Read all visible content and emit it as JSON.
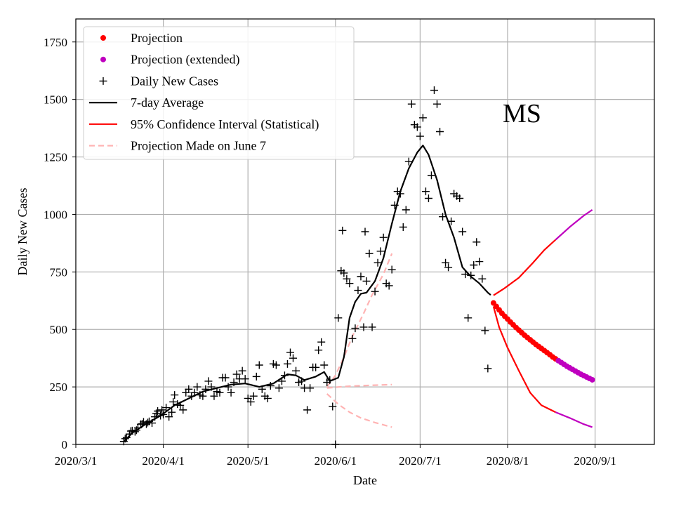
{
  "chart_data": {
    "type": "line",
    "title": "",
    "annotation": "MS",
    "xlabel": "Date",
    "ylabel": "Daily New Cases",
    "ylim": [
      0,
      1850
    ],
    "xlim_days": [
      0,
      205
    ],
    "x_ticks": [
      {
        "label": "2020/3/1",
        "day": 0
      },
      {
        "label": "2020/4/1",
        "day": 31
      },
      {
        "label": "2020/5/1",
        "day": 61
      },
      {
        "label": "2020/6/1",
        "day": 92
      },
      {
        "label": "2020/7/1",
        "day": 122
      },
      {
        "label": "2020/8/1",
        "day": 153
      },
      {
        "label": "2020/9/1",
        "day": 184
      }
    ],
    "y_ticks": [
      0,
      250,
      500,
      750,
      1000,
      1250,
      1500,
      1750
    ],
    "grid": true,
    "legend_position": "top-left",
    "legend": [
      {
        "label": "Projection",
        "style": "dot",
        "color": "#ff0000"
      },
      {
        "label": "Projection (extended)",
        "style": "dot",
        "color": "#bf00bf"
      },
      {
        "label": "Daily New Cases",
        "style": "plus",
        "color": "#000000"
      },
      {
        "label": "7-day Average",
        "style": "line",
        "color": "#000000"
      },
      {
        "label": "95% Confidence Interval (Statistical)",
        "style": "line",
        "color": "#ff0000"
      },
      {
        "label": "Projection Made on June 7",
        "style": "dashed",
        "color": "#ffb3b3"
      }
    ],
    "series": [
      {
        "name": "Daily New Cases",
        "style": "plus",
        "color": "#000000",
        "points": [
          [
            17,
            13
          ],
          [
            17.5,
            25
          ],
          [
            18,
            30
          ],
          [
            19,
            45
          ],
          [
            19.5,
            58
          ],
          [
            20,
            60
          ],
          [
            21,
            55
          ],
          [
            21.5,
            62
          ],
          [
            22,
            72
          ],
          [
            23,
            88
          ],
          [
            23.5,
            90
          ],
          [
            24,
            98
          ],
          [
            25,
            88
          ],
          [
            25.5,
            95
          ],
          [
            26,
            100
          ],
          [
            27,
            93
          ],
          [
            28,
            120
          ],
          [
            28.5,
            135
          ],
          [
            29,
            145
          ],
          [
            30,
            125
          ],
          [
            30.5,
            150
          ],
          [
            31,
            130
          ],
          [
            32,
            160
          ],
          [
            33,
            120
          ],
          [
            34,
            140
          ],
          [
            34.5,
            185
          ],
          [
            35,
            215
          ],
          [
            36,
            175
          ],
          [
            37,
            170
          ],
          [
            38,
            150
          ],
          [
            39,
            225
          ],
          [
            40,
            240
          ],
          [
            41,
            210
          ],
          [
            42,
            225
          ],
          [
            43,
            250
          ],
          [
            44,
            215
          ],
          [
            45,
            210
          ],
          [
            46,
            240
          ],
          [
            47,
            275
          ],
          [
            48,
            250
          ],
          [
            49,
            210
          ],
          [
            50,
            230
          ],
          [
            51,
            225
          ],
          [
            52,
            290
          ],
          [
            53,
            290
          ],
          [
            54,
            250
          ],
          [
            55,
            225
          ],
          [
            56,
            270
          ],
          [
            57,
            305
          ],
          [
            58,
            285
          ],
          [
            59,
            320
          ],
          [
            60,
            285
          ],
          [
            61,
            200
          ],
          [
            62,
            185
          ],
          [
            63,
            210
          ],
          [
            64,
            295
          ],
          [
            65,
            345
          ],
          [
            66,
            240
          ],
          [
            67,
            210
          ],
          [
            68,
            200
          ],
          [
            69,
            255
          ],
          [
            70,
            350
          ],
          [
            71,
            345
          ],
          [
            72,
            245
          ],
          [
            73,
            275
          ],
          [
            74,
            300
          ],
          [
            75,
            350
          ],
          [
            76,
            400
          ],
          [
            77,
            375
          ],
          [
            78,
            320
          ],
          [
            79,
            270
          ],
          [
            80,
            275
          ],
          [
            81,
            245
          ],
          [
            82,
            150
          ],
          [
            83,
            245
          ],
          [
            84,
            335
          ],
          [
            85,
            335
          ],
          [
            86,
            410
          ],
          [
            87,
            445
          ],
          [
            88,
            345
          ],
          [
            89,
            270
          ],
          [
            90,
            280
          ],
          [
            91,
            165
          ],
          [
            92,
            0
          ],
          [
            93,
            550
          ],
          [
            94,
            755
          ],
          [
            94.5,
            930
          ],
          [
            95,
            745
          ],
          [
            96,
            720
          ],
          [
            97,
            700
          ],
          [
            98,
            460
          ],
          [
            99,
            505
          ],
          [
            100,
            670
          ],
          [
            101,
            730
          ],
          [
            102,
            510
          ],
          [
            102.5,
            925
          ],
          [
            103,
            710
          ],
          [
            104,
            830
          ],
          [
            105,
            510
          ],
          [
            106,
            665
          ],
          [
            107,
            790
          ],
          [
            108,
            840
          ],
          [
            109,
            900
          ],
          [
            110,
            700
          ],
          [
            111,
            690
          ],
          [
            112,
            760
          ],
          [
            113,
            1040
          ],
          [
            114,
            1100
          ],
          [
            115,
            1090
          ],
          [
            116,
            945
          ],
          [
            117,
            1020
          ],
          [
            118,
            1230
          ],
          [
            119,
            1480
          ],
          [
            120,
            1390
          ],
          [
            121,
            1380
          ],
          [
            122,
            1340
          ],
          [
            123,
            1420
          ],
          [
            124,
            1100
          ],
          [
            125,
            1070
          ],
          [
            126,
            1170
          ],
          [
            127,
            1540
          ],
          [
            128,
            1480
          ],
          [
            129,
            1360
          ],
          [
            130,
            990
          ],
          [
            131,
            790
          ],
          [
            132,
            770
          ],
          [
            133,
            970
          ],
          [
            134,
            1090
          ],
          [
            135,
            1080
          ],
          [
            136,
            1070
          ],
          [
            137,
            925
          ],
          [
            138,
            740
          ],
          [
            139,
            550
          ],
          [
            140,
            735
          ],
          [
            141,
            780
          ],
          [
            142,
            880
          ],
          [
            143,
            795
          ],
          [
            144,
            720
          ],
          [
            145,
            495
          ],
          [
            146,
            330
          ]
        ]
      },
      {
        "name": "7-day Average",
        "style": "line",
        "color": "#000000",
        "points": [
          [
            17,
            12
          ],
          [
            20,
            50
          ],
          [
            25,
            90
          ],
          [
            30,
            125
          ],
          [
            35,
            170
          ],
          [
            40,
            200
          ],
          [
            45,
            230
          ],
          [
            50,
            245
          ],
          [
            55,
            260
          ],
          [
            60,
            265
          ],
          [
            65,
            250
          ],
          [
            70,
            265
          ],
          [
            75,
            305
          ],
          [
            78,
            300
          ],
          [
            81,
            280
          ],
          [
            85,
            295
          ],
          [
            88,
            315
          ],
          [
            90,
            275
          ],
          [
            93,
            290
          ],
          [
            95,
            380
          ],
          [
            97,
            550
          ],
          [
            99,
            620
          ],
          [
            101,
            655
          ],
          [
            103,
            660
          ],
          [
            106,
            710
          ],
          [
            109,
            810
          ],
          [
            112,
            960
          ],
          [
            115,
            1100
          ],
          [
            118,
            1200
          ],
          [
            121,
            1270
          ],
          [
            123,
            1300
          ],
          [
            125,
            1260
          ],
          [
            128,
            1150
          ],
          [
            131,
            1000
          ],
          [
            134,
            900
          ],
          [
            137,
            770
          ],
          [
            140,
            730
          ],
          [
            143,
            700
          ],
          [
            146,
            660
          ],
          [
            147,
            650
          ]
        ]
      },
      {
        "name": "Projection",
        "style": "dot",
        "color": "#ff0000",
        "points": [
          [
            148,
            615
          ],
          [
            149,
            600
          ],
          [
            150,
            585
          ],
          [
            151,
            570
          ],
          [
            152,
            557
          ],
          [
            153,
            545
          ],
          [
            154,
            532
          ],
          [
            155,
            520
          ],
          [
            156,
            508
          ],
          [
            157,
            497
          ],
          [
            158,
            486
          ],
          [
            159,
            475
          ],
          [
            160,
            465
          ],
          [
            161,
            455
          ],
          [
            162,
            445
          ],
          [
            163,
            435
          ],
          [
            164,
            426
          ],
          [
            165,
            417
          ],
          [
            166,
            408
          ],
          [
            167,
            399
          ],
          [
            168,
            390
          ],
          [
            169,
            380
          ],
          [
            170,
            372
          ]
        ]
      },
      {
        "name": "Projection (extended)",
        "style": "dot",
        "color": "#bf00bf",
        "points": [
          [
            171,
            364
          ],
          [
            172,
            356
          ],
          [
            173,
            348
          ],
          [
            174,
            340
          ],
          [
            175,
            333
          ],
          [
            176,
            326
          ],
          [
            177,
            319
          ],
          [
            178,
            312
          ],
          [
            179,
            305
          ],
          [
            180,
            299
          ],
          [
            181,
            293
          ],
          [
            182,
            287
          ],
          [
            183,
            281
          ]
        ]
      },
      {
        "name": "95% CI upper",
        "style": "line",
        "color": "#ff0000",
        "points": [
          [
            148,
            648
          ],
          [
            152,
            680
          ],
          [
            157,
            725
          ],
          [
            162,
            790
          ],
          [
            166,
            845
          ],
          [
            170,
            890
          ]
        ]
      },
      {
        "name": "95% CI lower",
        "style": "line",
        "color": "#ff0000",
        "points": [
          [
            148,
            600
          ],
          [
            150,
            510
          ],
          [
            153,
            420
          ],
          [
            157,
            320
          ],
          [
            161,
            225
          ],
          [
            165,
            170
          ],
          [
            170,
            140
          ]
        ]
      },
      {
        "name": "CI upper (extended)",
        "style": "line",
        "color": "#bf00bf",
        "points": [
          [
            170,
            890
          ],
          [
            175,
            945
          ],
          [
            180,
            995
          ],
          [
            183,
            1020
          ]
        ]
      },
      {
        "name": "CI lower (extended)",
        "style": "line",
        "color": "#bf00bf",
        "points": [
          [
            170,
            140
          ],
          [
            175,
            115
          ],
          [
            180,
            88
          ],
          [
            183,
            75
          ]
        ]
      },
      {
        "name": "Projection Made on June 7 (upper)",
        "style": "dashed",
        "color": "#ffb3b3",
        "points": [
          [
            89,
            250
          ],
          [
            92,
            300
          ],
          [
            95,
            380
          ],
          [
            98,
            470
          ],
          [
            102,
            570
          ],
          [
            105,
            650
          ],
          [
            109,
            740
          ],
          [
            112,
            830
          ]
        ]
      },
      {
        "name": "Projection Made on June 7 (center)",
        "style": "dashed",
        "color": "#ffb3b3",
        "points": [
          [
            89,
            245
          ],
          [
            95,
            252
          ],
          [
            100,
            255
          ],
          [
            105,
            257
          ],
          [
            112,
            260
          ]
        ]
      },
      {
        "name": "Projection Made on June 7 (lower)",
        "style": "dashed",
        "color": "#ffb3b3",
        "points": [
          [
            89,
            220
          ],
          [
            93,
            175
          ],
          [
            97,
            140
          ],
          [
            101,
            115
          ],
          [
            106,
            95
          ],
          [
            112,
            75
          ]
        ]
      }
    ]
  }
}
